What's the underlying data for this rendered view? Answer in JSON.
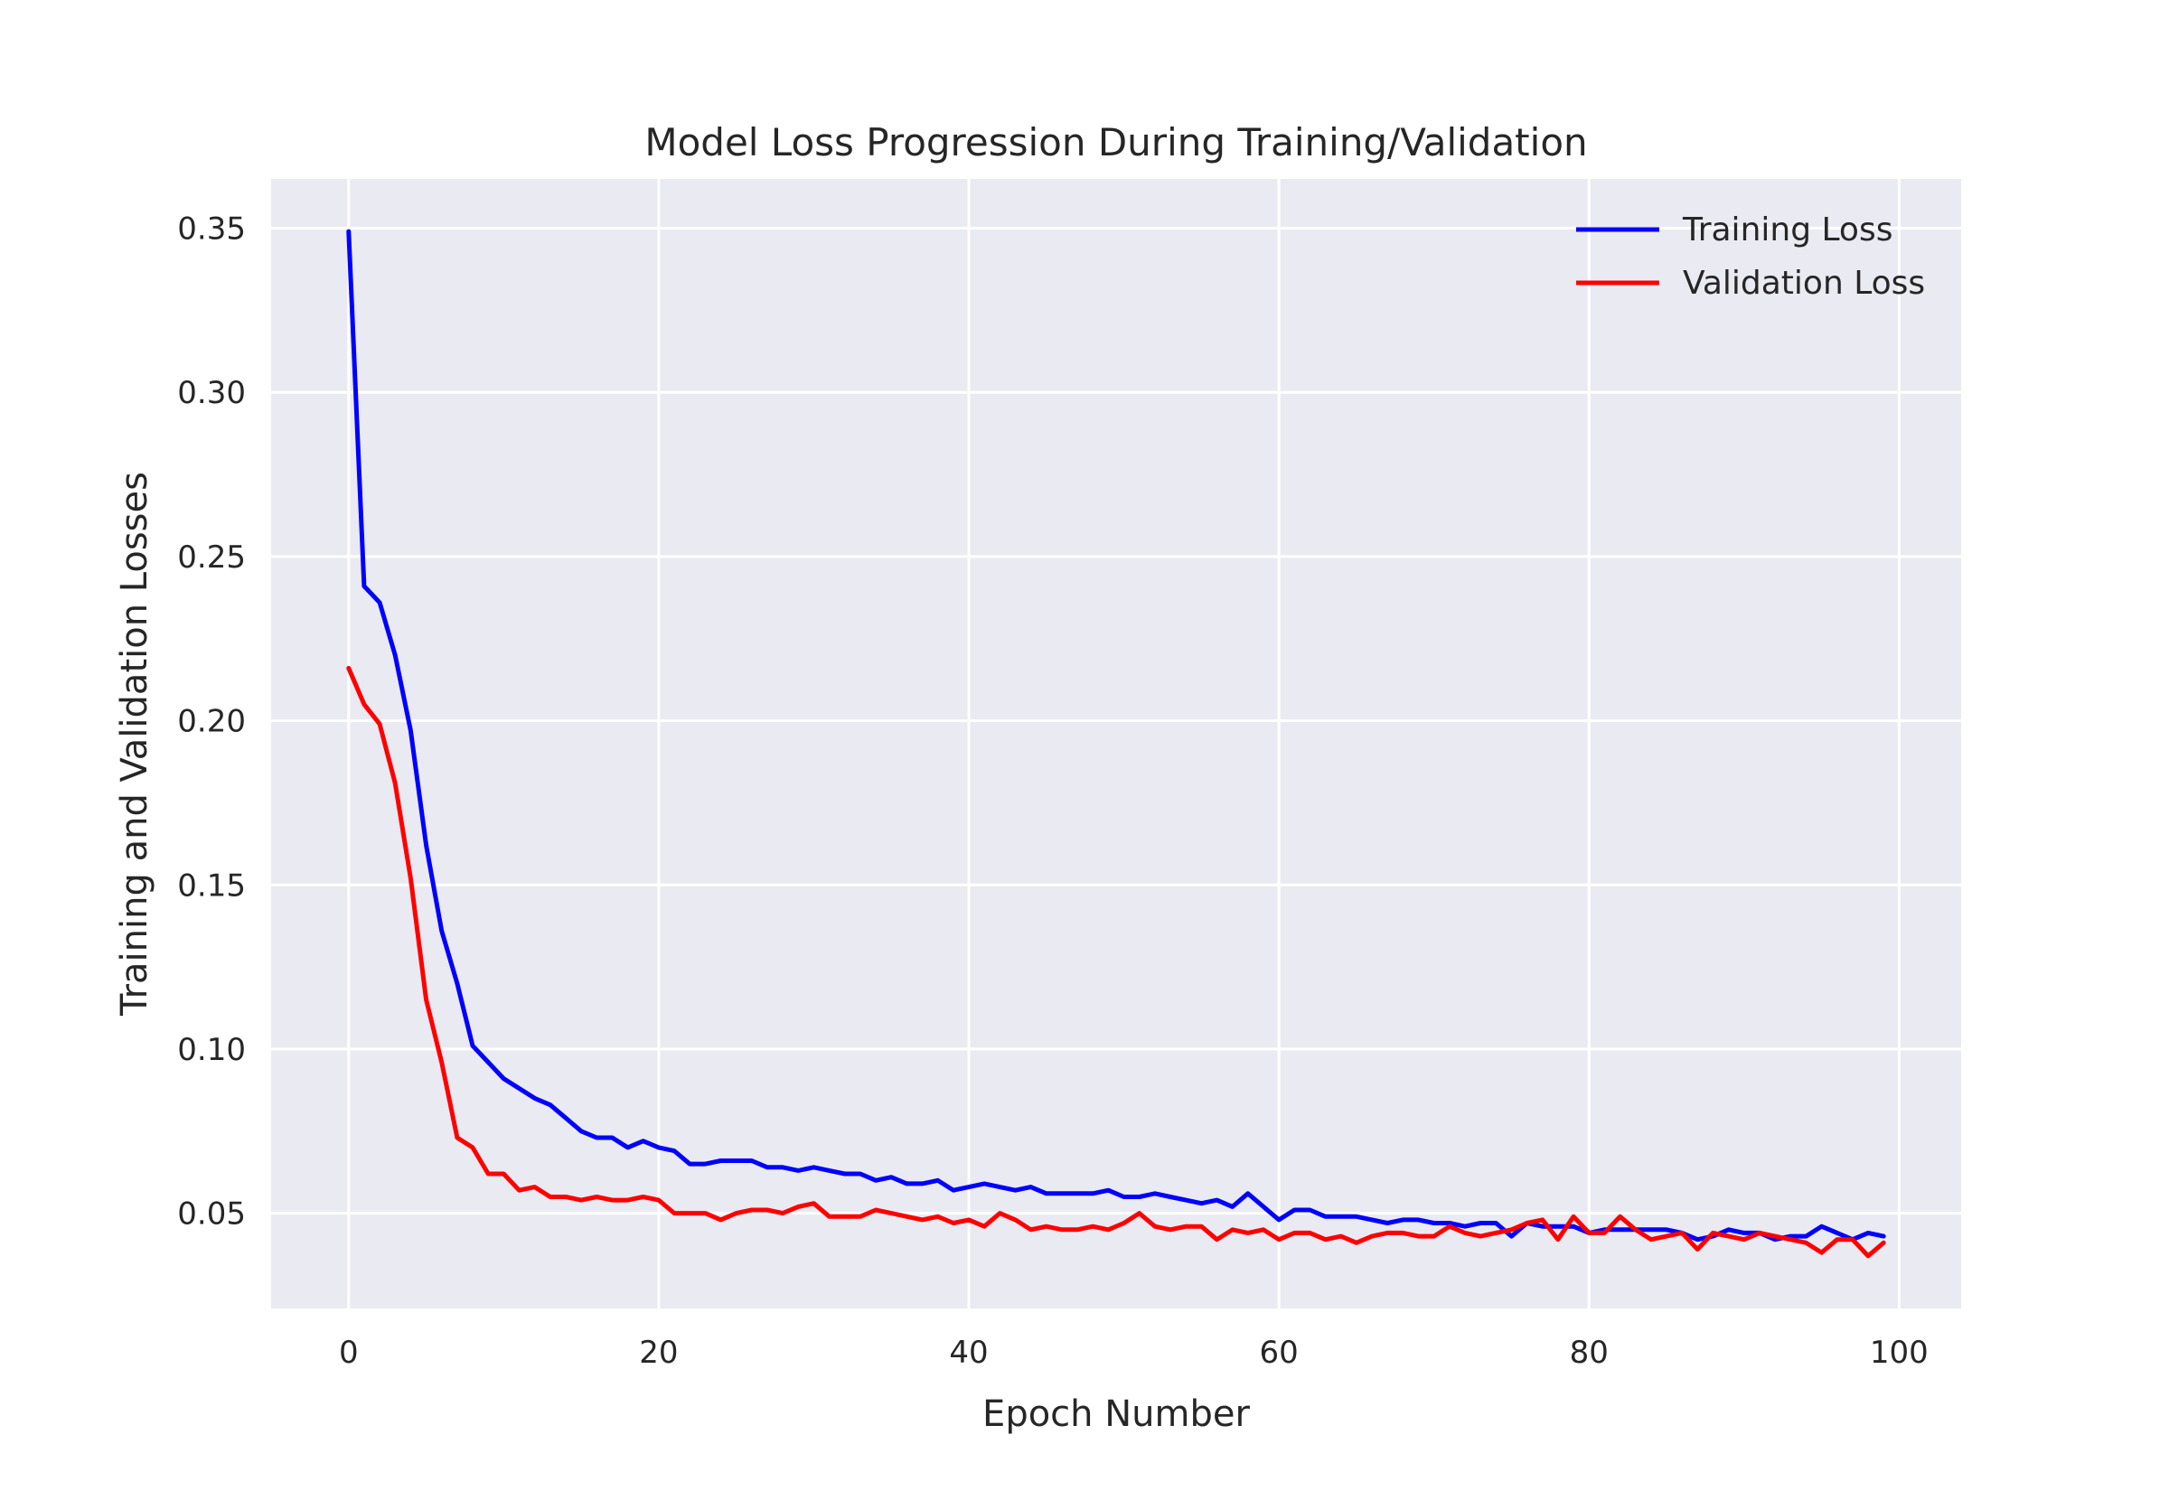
{
  "chart_data": {
    "type": "line",
    "title": "Model Loss Progression During Training/Validation",
    "xlabel": "Epoch Number",
    "ylabel": "Training and Validation Losses",
    "xlim": [
      -5,
      104
    ],
    "ylim": [
      0.021,
      0.365
    ],
    "xticks": [
      0,
      20,
      40,
      60,
      80,
      100
    ],
    "yticks": [
      0.05,
      0.1,
      0.15,
      0.2,
      0.25,
      0.3,
      0.35
    ],
    "xtick_labels": [
      "0",
      "20",
      "40",
      "60",
      "80",
      "100"
    ],
    "ytick_labels": [
      "0.05",
      "0.10",
      "0.15",
      "0.20",
      "0.25",
      "0.30",
      "0.35"
    ],
    "grid": true,
    "legend_position": "top-right",
    "x_start": 0,
    "series": [
      {
        "name": "Training Loss",
        "color": "#0000ff",
        "values": [
          0.349,
          0.241,
          0.236,
          0.22,
          0.197,
          0.162,
          0.136,
          0.12,
          0.101,
          0.096,
          0.091,
          0.088,
          0.085,
          0.083,
          0.079,
          0.075,
          0.073,
          0.073,
          0.07,
          0.072,
          0.07,
          0.069,
          0.065,
          0.065,
          0.066,
          0.066,
          0.066,
          0.064,
          0.064,
          0.063,
          0.064,
          0.063,
          0.062,
          0.062,
          0.06,
          0.061,
          0.059,
          0.059,
          0.06,
          0.057,
          0.058,
          0.059,
          0.058,
          0.057,
          0.058,
          0.056,
          0.056,
          0.056,
          0.056,
          0.057,
          0.055,
          0.055,
          0.056,
          0.055,
          0.054,
          0.053,
          0.054,
          0.052,
          0.056,
          0.052,
          0.048,
          0.051,
          0.051,
          0.049,
          0.049,
          0.049,
          0.048,
          0.047,
          0.048,
          0.048,
          0.047,
          0.047,
          0.046,
          0.047,
          0.047,
          0.043,
          0.047,
          0.046,
          0.046,
          0.046,
          0.044,
          0.045,
          0.045,
          0.045,
          0.045,
          0.045,
          0.044,
          0.042,
          0.043,
          0.045,
          0.044,
          0.044,
          0.042,
          0.043,
          0.043,
          0.046,
          0.044,
          0.042,
          0.044,
          0.043
        ]
      },
      {
        "name": "Validation Loss",
        "color": "#ff0000",
        "values": [
          0.216,
          0.205,
          0.199,
          0.181,
          0.152,
          0.115,
          0.096,
          0.073,
          0.07,
          0.062,
          0.062,
          0.057,
          0.058,
          0.055,
          0.055,
          0.054,
          0.055,
          0.054,
          0.054,
          0.055,
          0.054,
          0.05,
          0.05,
          0.05,
          0.048,
          0.05,
          0.051,
          0.051,
          0.05,
          0.052,
          0.053,
          0.049,
          0.049,
          0.049,
          0.051,
          0.05,
          0.049,
          0.048,
          0.049,
          0.047,
          0.048,
          0.046,
          0.05,
          0.048,
          0.045,
          0.046,
          0.045,
          0.045,
          0.046,
          0.045,
          0.047,
          0.05,
          0.046,
          0.045,
          0.046,
          0.046,
          0.042,
          0.045,
          0.044,
          0.045,
          0.042,
          0.044,
          0.044,
          0.042,
          0.043,
          0.041,
          0.043,
          0.044,
          0.044,
          0.043,
          0.043,
          0.046,
          0.044,
          0.043,
          0.044,
          0.045,
          0.047,
          0.048,
          0.042,
          0.049,
          0.044,
          0.044,
          0.049,
          0.045,
          0.042,
          0.043,
          0.044,
          0.039,
          0.044,
          0.043,
          0.042,
          0.044,
          0.043,
          0.042,
          0.041,
          0.038,
          0.042,
          0.042,
          0.037,
          0.041
        ]
      }
    ]
  }
}
